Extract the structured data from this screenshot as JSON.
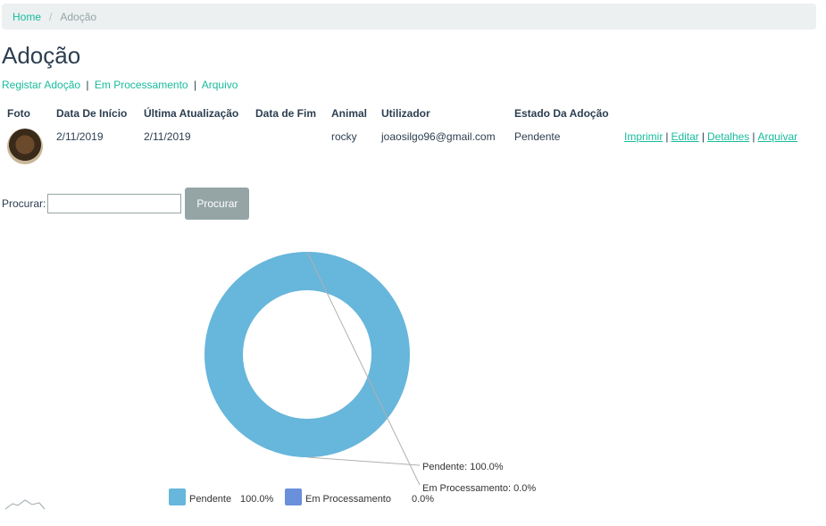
{
  "breadcrumb": {
    "home": "Home",
    "current": "Adoção"
  },
  "page": {
    "title": "Adoção"
  },
  "sublinks": {
    "register": "Registar Adoção",
    "processing": "Em Processamento",
    "archive": "Arquivo",
    "separator": "|"
  },
  "table": {
    "headers": [
      "Foto",
      "Data De Início",
      "Última Atualização",
      "Data de Fim",
      "Animal",
      "Utilizador",
      "Estado Da Adoção",
      ""
    ],
    "rows": [
      {
        "start_date": "2/11/2019",
        "last_update": "2/11/2019",
        "end_date": "",
        "animal": "rocky",
        "user": "joaosilgo96@gmail.com",
        "status": "Pendente",
        "actions": {
          "print": "Imprimir",
          "edit": "Editar",
          "details": "Detalhes",
          "archive": "Arquivar"
        }
      }
    ]
  },
  "search": {
    "label": "Procurar:",
    "value": "",
    "button": "Procurar"
  },
  "colors": {
    "accent": "#18bc9c",
    "title": "#2c3e50",
    "button": "#95a5a6",
    "pendente": "#67b6db",
    "em_processamento": "#6a8fdb"
  },
  "chart_data": {
    "type": "pie",
    "donut": true,
    "categories": [
      "Pendente",
      "Em Processamento"
    ],
    "values": [
      100.0,
      0.0
    ],
    "percent_labels": [
      "100.0%",
      "0.0%"
    ],
    "series_colors": [
      "#67b6db",
      "#6a8fdb"
    ],
    "callouts": [
      "Pendente: 100.0%",
      "Em Processamento: 0.0%"
    ],
    "legend": {
      "placement": "bottom",
      "entries": [
        {
          "label": "Pendente",
          "value": "100.0%"
        },
        {
          "label": "Em Processamento",
          "value": "0.0%"
        }
      ]
    }
  }
}
